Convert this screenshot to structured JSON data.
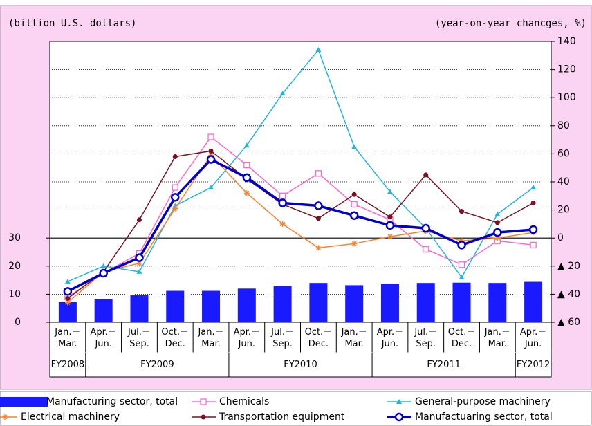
{
  "chart_data": {
    "type": "bar-line",
    "y_label": "(billion U.S. dollars)",
    "y2_label": "(year-on-year chancges, %)",
    "categories": [
      "Jan.－\nMar.",
      "Apr.－\nJun.",
      "Jul.－\nSep.",
      "Oct.－\nDec.",
      "Jan.－\nMar.",
      "Apr.－\nJun.",
      "Jul.－\nSep.",
      "Oct.－\nDec.",
      "Jan.－\nMar.",
      "Apr.－\nJun.",
      "Jul.－\nSep.",
      "Oct.－\nDec.",
      "Jan.－\nMar.",
      "Apr.－\nJun."
    ],
    "fiscal_years": [
      {
        "label": "FY2008",
        "from": 0,
        "to": 0
      },
      {
        "label": "FY2009",
        "from": 1,
        "to": 4
      },
      {
        "label": "FY2010",
        "from": 5,
        "to": 8
      },
      {
        "label": "FY2011",
        "from": 9,
        "to": 12
      },
      {
        "label": "FY2012",
        "from": 13,
        "to": 13
      }
    ],
    "ylim": [
      0,
      100
    ],
    "yticks": [
      0,
      10,
      20,
      30
    ],
    "y2lim": [
      -60,
      140
    ],
    "y2ticks": [
      {
        "value": -60,
        "label": "▲ 60"
      },
      {
        "value": -40,
        "label": "▲ 40"
      },
      {
        "value": -20,
        "label": "▲ 20"
      },
      0,
      20,
      40,
      60,
      80,
      100,
      120,
      140
    ],
    "grid": true,
    "series": [
      {
        "name": "Manufacturing sector, total",
        "type": "bar",
        "color": "#1a1aff",
        "values": [
          7.2,
          8.2,
          9.6,
          11.2,
          11.2,
          12,
          12.9,
          14,
          13.2,
          13.7,
          14,
          14.1,
          14,
          14.4
        ]
      },
      {
        "name": "Chemicals",
        "type": "line",
        "axis": "y2",
        "marker": "square",
        "color": "#ff66cc",
        "values": [
          -42,
          -25,
          -11,
          36,
          72,
          52,
          30,
          46,
          24,
          13,
          -8,
          -19,
          -2,
          -5
        ]
      },
      {
        "name": "General-purpose machinery",
        "type": "line",
        "axis": "y2",
        "marker": "triangle",
        "color": "#22b5dd",
        "values": [
          -31,
          -20,
          -24,
          23,
          36,
          66,
          103,
          134,
          65,
          33,
          7,
          -28,
          17,
          36
        ]
      },
      {
        "name": "Electrical machinery",
        "type": "line",
        "axis": "y2",
        "marker": "asterisk",
        "color": "#ff7f27",
        "values": [
          -46,
          -24,
          -18,
          21,
          59,
          32,
          10,
          -7,
          -4,
          1,
          5,
          -2,
          0,
          4
        ]
      },
      {
        "name": "Transportation equipment",
        "type": "line",
        "axis": "y2",
        "marker": "circle",
        "color": "#7a1020",
        "values": [
          -43,
          -24,
          13,
          58,
          62,
          42,
          24,
          14,
          31,
          15,
          45,
          19,
          11,
          25
        ]
      },
      {
        "name": "Manufactuaring sector, total",
        "type": "line",
        "axis": "y2",
        "marker": "ring",
        "color": "#0000cc",
        "values": [
          -38,
          -25,
          -14,
          29,
          56,
          43,
          25,
          23,
          16,
          9,
          7,
          -5,
          4,
          6
        ]
      }
    ]
  }
}
